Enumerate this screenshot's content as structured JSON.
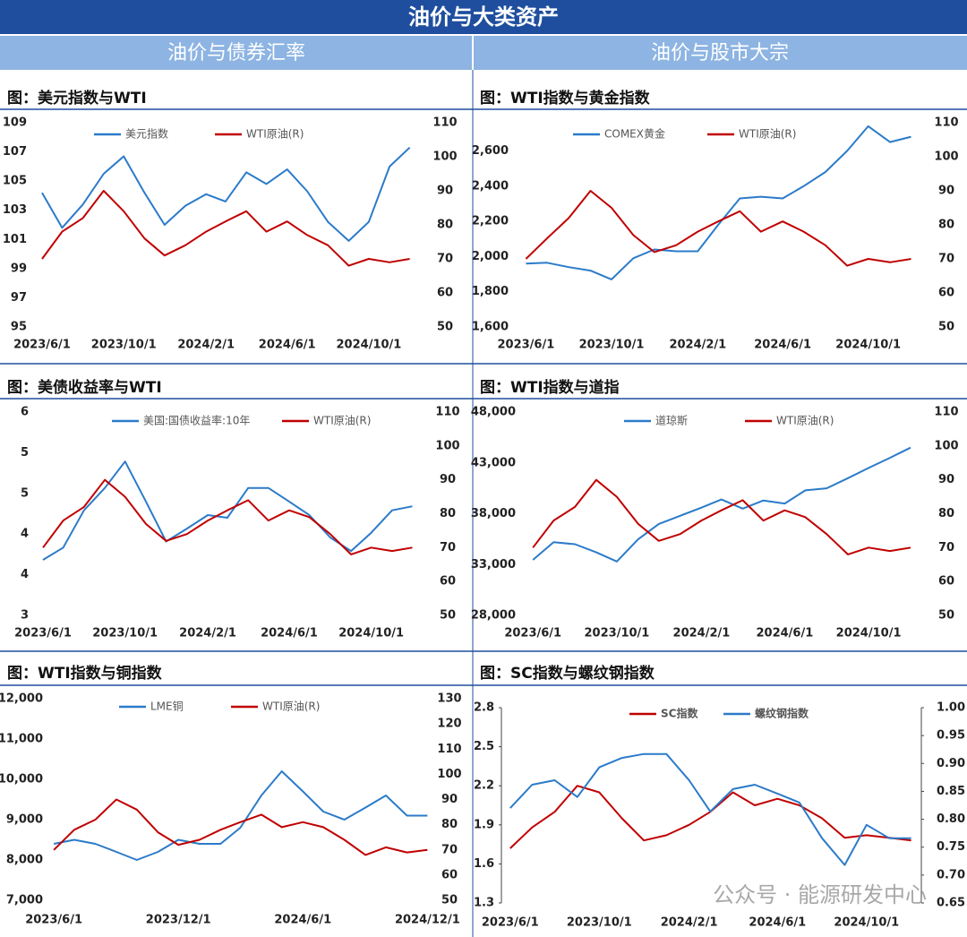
{
  "header": {
    "title": "油价与大类资产",
    "sections": [
      "油价与债券汇率",
      "油价与股市大宗"
    ]
  },
  "watermark": "公众号 · 能源研发中心",
  "chart_data": [
    {
      "type": "line",
      "title": "图：美元指数与WTI",
      "x": [
        "2023/6/1",
        "2023/7/1",
        "2023/8/1",
        "2023/9/1",
        "2023/10/1",
        "2023/11/1",
        "2023/12/1",
        "2024/1/1",
        "2024/2/1",
        "2024/3/1",
        "2024/4/1",
        "2024/5/1",
        "2024/6/1",
        "2024/7/1",
        "2024/8/1",
        "2024/9/1",
        "2024/10/1",
        "2024/11/1",
        "2024/12/1"
      ],
      "xlim": [
        "2023/5/20",
        "2024/12/31"
      ],
      "xticks": [
        "2023/6/1",
        "2023/10/1",
        "2024/2/1",
        "2024/6/1",
        "2024/10/1"
      ],
      "ylim": [
        95,
        109
      ],
      "yticks": [
        95,
        97,
        99,
        101,
        103,
        105,
        107,
        109
      ],
      "y2lim": [
        50,
        110
      ],
      "y2ticks": [
        50,
        60,
        70,
        80,
        90,
        100,
        110
      ],
      "series": [
        {
          "name": "美元指数",
          "color": "#2b7bc9",
          "values": [
            104.2,
            101.8,
            103.4,
            105.5,
            106.7,
            104.2,
            102.0,
            103.3,
            104.1,
            103.6,
            105.6,
            104.8,
            105.8,
            104.3,
            102.2,
            100.9,
            102.2,
            106.0,
            107.3
          ]
        },
        {
          "name": "WTI原油(R)",
          "color": "#c00000",
          "axis": "y2",
          "values": [
            70,
            78,
            82,
            90,
            84,
            76,
            71,
            74,
            78,
            81,
            84,
            78,
            81,
            77,
            74,
            68,
            70,
            69,
            70
          ]
        }
      ]
    },
    {
      "type": "line",
      "title": "图：WTI指数与黄金指数",
      "x": [
        "2023/6/1",
        "2023/7/1",
        "2023/8/1",
        "2023/9/1",
        "2023/10/1",
        "2023/11/1",
        "2023/12/1",
        "2024/1/1",
        "2024/2/1",
        "2024/3/1",
        "2024/4/1",
        "2024/5/1",
        "2024/6/1",
        "2024/7/1",
        "2024/8/1",
        "2024/9/1",
        "2024/10/1",
        "2024/11/1",
        "2024/12/1"
      ],
      "xlim": [
        "2023/5/20",
        "2024/12/31"
      ],
      "xticks": [
        "2023/6/1",
        "2023/10/1",
        "2024/2/1",
        "2024/6/1",
        "2024/10/1"
      ],
      "ylim": [
        1600,
        2760
      ],
      "yticks": [
        {
          "value": 1600,
          "label": "1,600"
        },
        {
          "value": 1800,
          "label": "1,800"
        },
        {
          "value": 2000,
          "label": "2,000"
        },
        {
          "value": 2200,
          "label": "2,200"
        },
        {
          "value": 2400,
          "label": "2,400"
        },
        {
          "value": 2600,
          "label": "2,600"
        }
      ],
      "y2lim": [
        50,
        110
      ],
      "y2ticks": [
        50,
        60,
        70,
        80,
        90,
        100,
        110
      ],
      "series": [
        {
          "name": "COMEX黄金",
          "color": "#2b7bc9",
          "values": [
            1960,
            1965,
            1940,
            1920,
            1870,
            1990,
            2040,
            2030,
            2030,
            2180,
            2330,
            2340,
            2330,
            2400,
            2480,
            2600,
            2740,
            2650,
            2680
          ]
        },
        {
          "name": "WTI原油(R)",
          "color": "#c00000",
          "axis": "y2",
          "values": [
            70,
            76,
            82,
            90,
            85,
            77,
            72,
            74,
            78,
            81,
            84,
            78,
            81,
            78,
            74,
            68,
            70,
            69,
            70
          ]
        }
      ]
    },
    {
      "type": "line",
      "title": "图：美债收益率与WTI",
      "x": [
        "2023/6/1",
        "2023/7/1",
        "2023/8/1",
        "2023/9/1",
        "2023/10/1",
        "2023/11/1",
        "2023/12/1",
        "2024/1/1",
        "2024/2/1",
        "2024/3/1",
        "2024/4/1",
        "2024/5/1",
        "2024/6/1",
        "2024/7/1",
        "2024/8/1",
        "2024/9/1",
        "2024/10/1",
        "2024/11/1",
        "2024/12/1"
      ],
      "xlim": [
        "2023/5/20",
        "2024/12/31"
      ],
      "xticks": [
        "2023/6/1",
        "2023/10/1",
        "2024/2/1",
        "2024/6/1",
        "2024/10/1"
      ],
      "ylim": [
        3,
        6
      ],
      "yticks": [
        3,
        {
          "value": 3.6,
          "label": "4"
        },
        {
          "value": 4.2,
          "label": "4"
        },
        {
          "value": 4.8,
          "label": "5"
        },
        {
          "value": 5.4,
          "label": "5"
        },
        6
      ],
      "y2lim": [
        50,
        110
      ],
      "y2ticks": [
        50,
        60,
        70,
        80,
        90,
        100,
        110
      ],
      "series": [
        {
          "name": "美国:国债收益率:10年",
          "color": "#2b7bc9",
          "values": [
            3.82,
            4.0,
            4.55,
            4.88,
            5.27,
            4.68,
            4.09,
            4.28,
            4.48,
            4.44,
            4.88,
            4.88,
            4.68,
            4.48,
            4.15,
            3.95,
            4.22,
            4.55,
            4.61
          ]
        },
        {
          "name": "WTI原油(R)",
          "color": "#c00000",
          "axis": "y2",
          "values": [
            70,
            78,
            82,
            90,
            85,
            77,
            72,
            74,
            78,
            81,
            84,
            78,
            81,
            79,
            74,
            68,
            70,
            69,
            70
          ]
        }
      ]
    },
    {
      "type": "line",
      "title": "图：WTI指数与道指",
      "x": [
        "2023/6/1",
        "2023/7/1",
        "2023/8/1",
        "2023/9/1",
        "2023/10/1",
        "2023/11/1",
        "2023/12/1",
        "2024/1/1",
        "2024/2/1",
        "2024/3/1",
        "2024/4/1",
        "2024/5/1",
        "2024/6/1",
        "2024/7/1",
        "2024/8/1",
        "2024/9/1",
        "2024/10/1",
        "2024/11/1",
        "2024/12/1"
      ],
      "xlim": [
        "2023/5/20",
        "2024/12/31"
      ],
      "xticks": [
        "2023/6/1",
        "2023/10/1",
        "2024/2/1",
        "2024/6/1",
        "2024/10/1"
      ],
      "ylim": [
        28000,
        48000
      ],
      "yticks": [
        {
          "value": 28000,
          "label": "28,000"
        },
        {
          "value": 33000,
          "label": "33,000"
        },
        {
          "value": 38000,
          "label": "38,000"
        },
        {
          "value": 43000,
          "label": "43,000"
        },
        {
          "value": 48000,
          "label": "48,000"
        }
      ],
      "y2lim": [
        50,
        110
      ],
      "y2ticks": [
        50,
        60,
        70,
        80,
        90,
        100,
        110
      ],
      "series": [
        {
          "name": "道琼斯",
          "color": "#2b7bc9",
          "values": [
            33460,
            35200,
            35000,
            34200,
            33300,
            35500,
            37000,
            37800,
            38600,
            39400,
            38500,
            39300,
            39000,
            40300,
            40500,
            41500,
            42500,
            43500,
            44500
          ]
        },
        {
          "name": "WTI原油(R)",
          "color": "#c00000",
          "axis": "y2",
          "values": [
            70,
            78,
            82,
            90,
            85,
            77,
            72,
            74,
            78,
            81,
            84,
            78,
            81,
            79,
            74,
            68,
            70,
            69,
            70
          ]
        }
      ]
    },
    {
      "type": "line",
      "title": "图：WTI指数与铜指数",
      "x": [
        "2023/6/1",
        "2023/7/1",
        "2023/8/1",
        "2023/9/1",
        "2023/10/1",
        "2023/11/1",
        "2023/12/1",
        "2024/1/1",
        "2024/2/1",
        "2024/3/1",
        "2024/4/1",
        "2024/5/1",
        "2024/6/1",
        "2024/7/1",
        "2024/8/1",
        "2024/9/1",
        "2024/10/1",
        "2024/11/1",
        "2024/12/1"
      ],
      "xlim": [
        "2023/5/20",
        "2024/12/15"
      ],
      "xticks": [
        "2023/6/1",
        "2023/12/1",
        "2024/6/1",
        "2024/12/1"
      ],
      "ylim": [
        7000,
        12000
      ],
      "yticks": [
        {
          "value": 7000,
          "label": "7,000"
        },
        {
          "value": 8000,
          "label": "8,000"
        },
        {
          "value": 9000,
          "label": "9,000"
        },
        {
          "value": 10000,
          "label": "10,000"
        },
        {
          "value": 11000,
          "label": "11,000"
        },
        {
          "value": 12000,
          "label": "12,000"
        }
      ],
      "y2lim": [
        50,
        130
      ],
      "y2ticks": [
        50,
        60,
        70,
        80,
        90,
        100,
        110,
        120,
        130
      ],
      "series": [
        {
          "name": "LME铜",
          "color": "#2b7bc9",
          "values": [
            8400,
            8500,
            8400,
            8200,
            8000,
            8200,
            8500,
            8400,
            8400,
            8800,
            9600,
            10200,
            9700,
            9200,
            9000,
            9300,
            9600,
            9100,
            9100
          ]
        },
        {
          "name": "WTI原油(R)",
          "color": "#c00000",
          "axis": "y2",
          "values": [
            70,
            78,
            82,
            90,
            86,
            77,
            72,
            74,
            78,
            81,
            84,
            79,
            81,
            79,
            74,
            68,
            71,
            69,
            70
          ]
        }
      ]
    },
    {
      "type": "line",
      "title": "图：SC指数与螺纹钢指数",
      "x": [
        "2023/6/1",
        "2023/7/1",
        "2023/8/1",
        "2023/9/1",
        "2023/10/1",
        "2023/11/1",
        "2023/12/1",
        "2024/1/1",
        "2024/2/1",
        "2024/3/1",
        "2024/4/1",
        "2024/5/1",
        "2024/6/1",
        "2024/7/1",
        "2024/8/1",
        "2024/9/1",
        "2024/10/1",
        "2024/11/1",
        "2024/12/1"
      ],
      "xlim": [
        "2023/5/20",
        "2024/12/15"
      ],
      "xticks": [
        "2023/6/1",
        "2023/10/1",
        "2024/2/1",
        "2024/6/1",
        "2024/10/1"
      ],
      "ylim": [
        1.3,
        2.8
      ],
      "yticks": [
        1.3,
        1.6,
        1.9,
        2.2,
        2.5,
        2.8
      ],
      "y2lim": [
        0.65,
        1.0
      ],
      "y2ticks": [
        0.65,
        {
          "value": 0.7,
          "label": "0.70"
        },
        0.75,
        {
          "value": 0.8,
          "label": "0.80"
        },
        0.85,
        {
          "value": 0.9,
          "label": "0.90"
        },
        0.95,
        {
          "value": 1.0,
          "label": "1.00"
        }
      ],
      "series": [
        {
          "name": "SC指数",
          "color": "#c00000",
          "values": [
            1.72,
            1.88,
            2.0,
            2.2,
            2.15,
            1.95,
            1.78,
            1.82,
            1.9,
            2.0,
            2.15,
            2.05,
            2.1,
            2.05,
            1.95,
            1.8,
            1.82,
            1.8,
            1.78
          ]
        },
        {
          "name": "螺纹钢指数",
          "color": "#2b7bc9",
          "axis": "y2",
          "values": [
            0.82,
            0.862,
            0.87,
            0.84,
            0.893,
            0.91,
            0.917,
            0.917,
            0.87,
            0.814,
            0.854,
            0.862,
            0.846,
            0.83,
            0.766,
            0.718,
            0.79,
            0.766,
            0.766
          ]
        }
      ]
    }
  ]
}
